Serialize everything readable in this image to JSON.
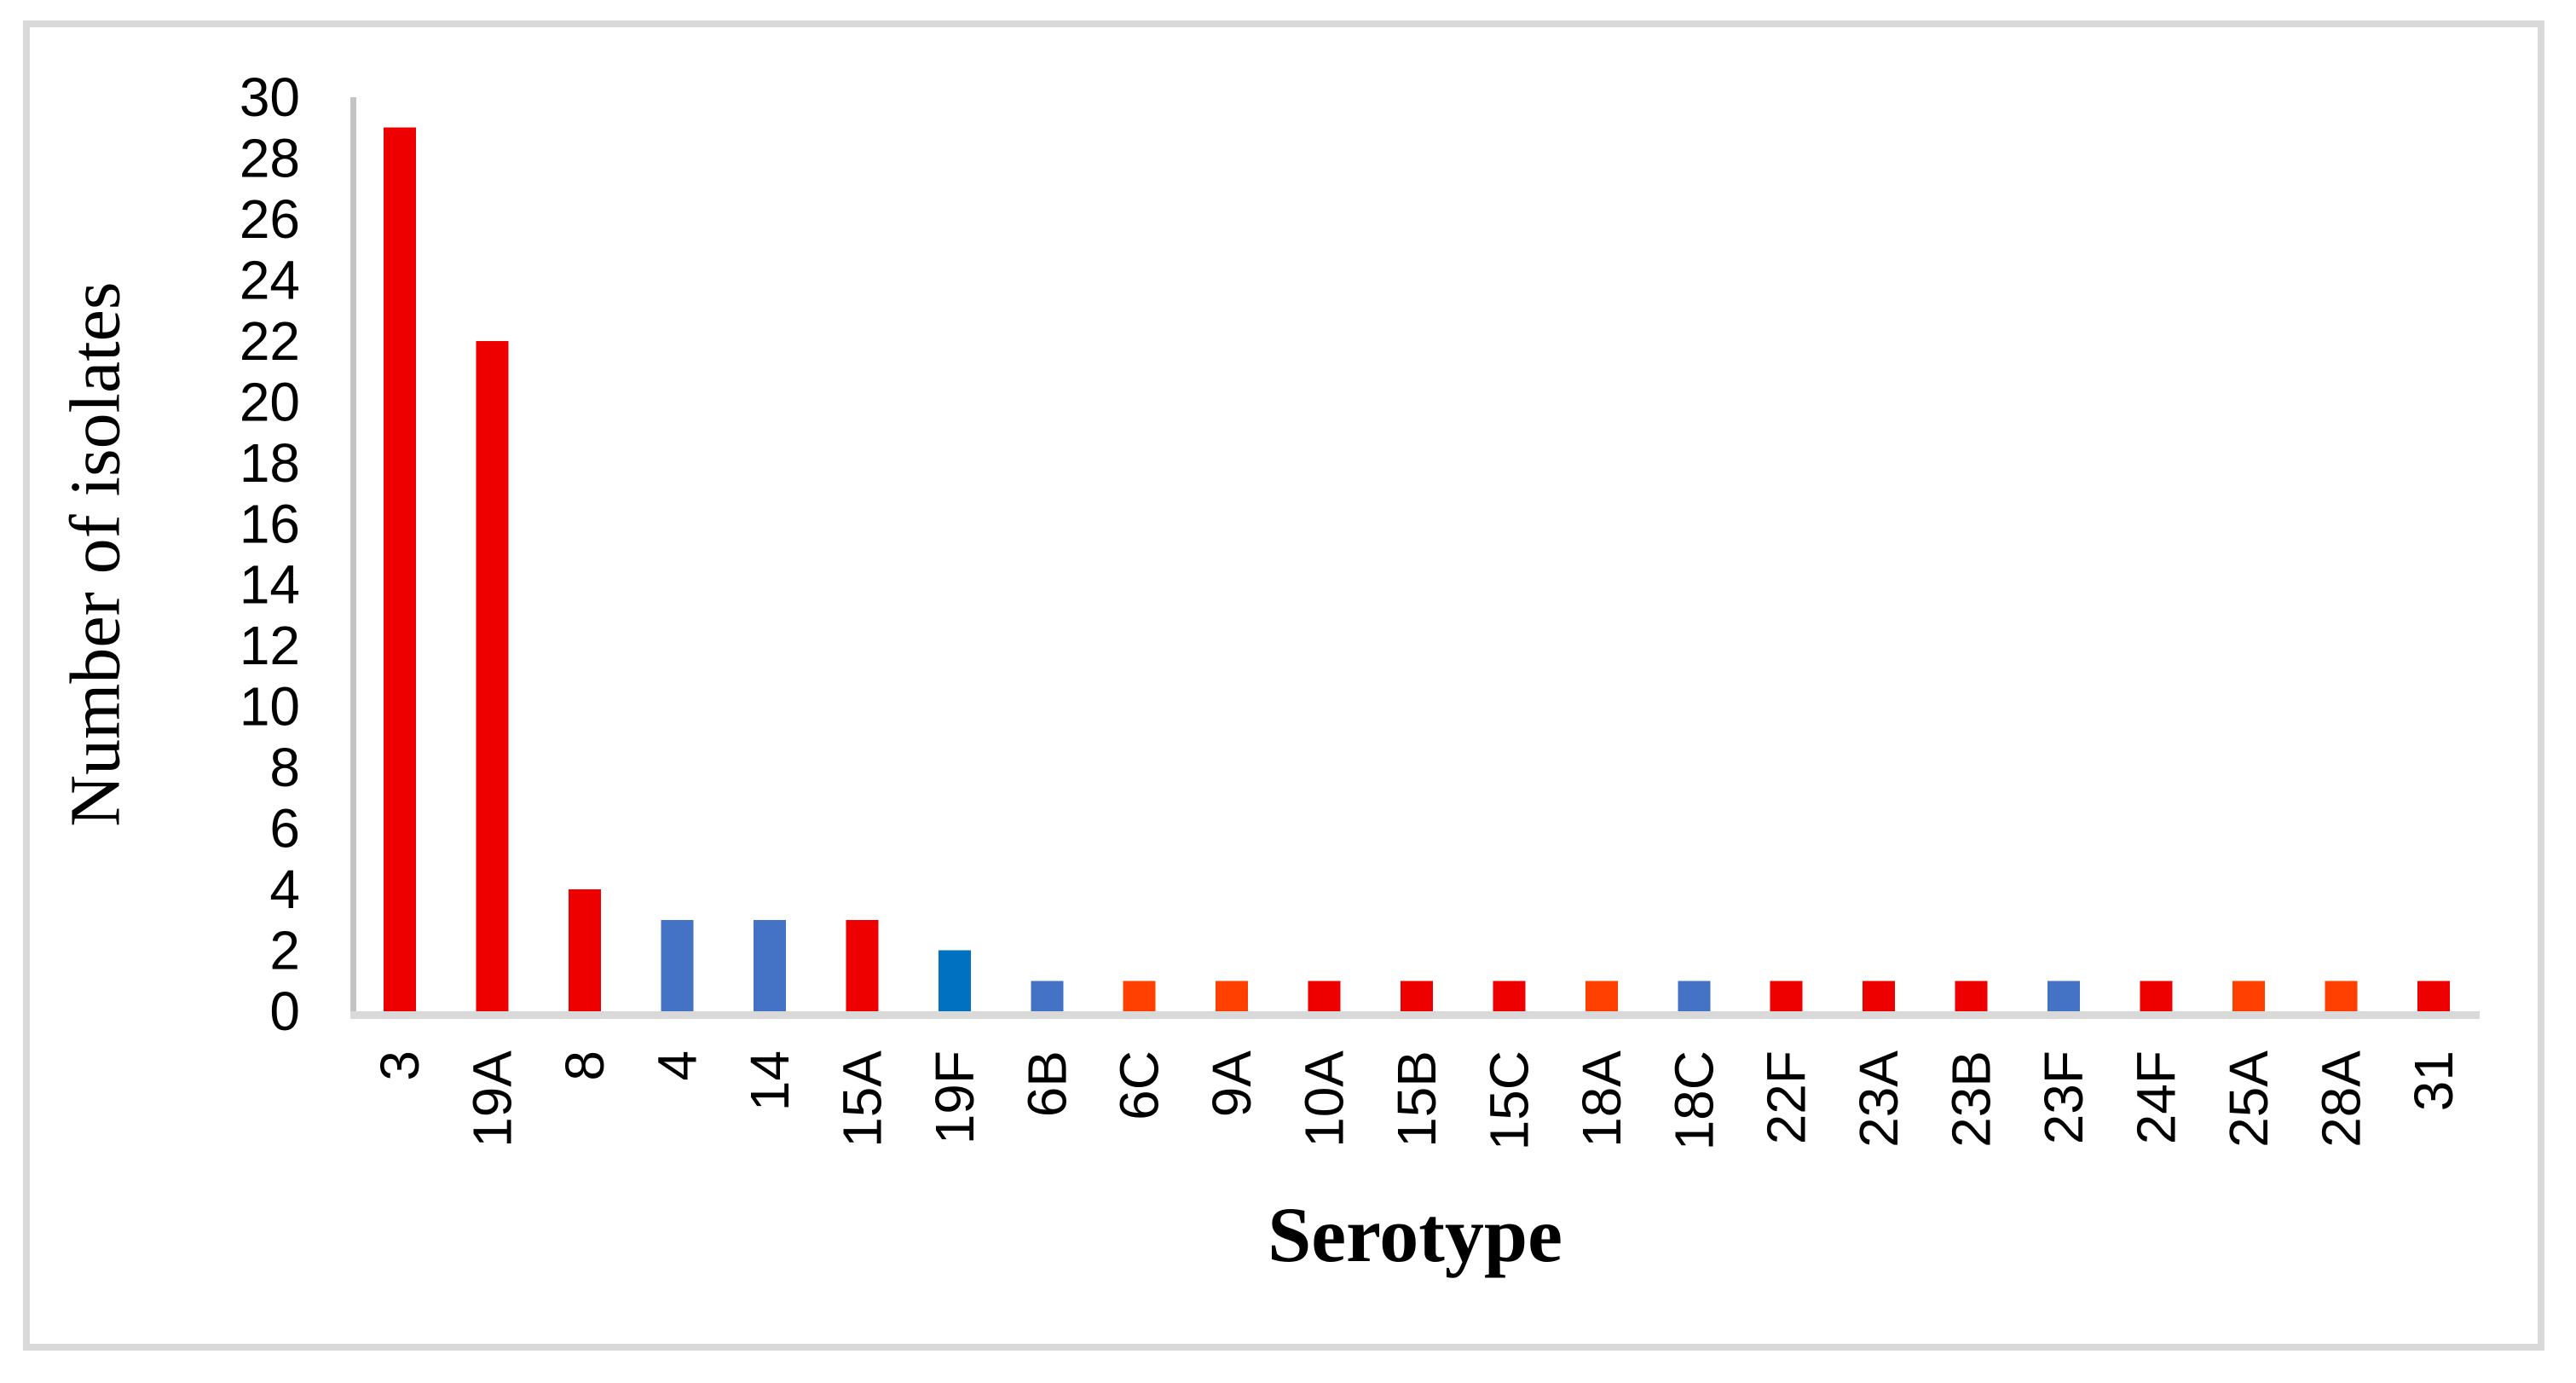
{
  "figure": {
    "background": "#FFFFFF",
    "border_color": "#D9D9D9"
  },
  "chart_data": {
    "type": "bar",
    "title": "",
    "xlabel": "Serotype",
    "ylabel": "Number of isolates",
    "categories": [
      "3",
      "19A",
      "8",
      "4",
      "14",
      "15A",
      "19F",
      "6B",
      "6C",
      "9A",
      "10A",
      "15B",
      "15C",
      "18A",
      "18C",
      "22F",
      "23A",
      "23B",
      "23F",
      "24F",
      "25A",
      "28A",
      "31"
    ],
    "values": [
      29,
      22,
      4,
      3,
      3,
      3,
      2,
      1,
      1,
      1,
      1,
      1,
      1,
      1,
      1,
      1,
      1,
      1,
      1,
      1,
      1,
      1,
      1
    ],
    "bar_color_keys": [
      "red",
      "red",
      "red",
      "blue",
      "blue",
      "red",
      "dark_blue",
      "blue",
      "orange",
      "orange",
      "red",
      "red",
      "red",
      "orange",
      "blue",
      "red",
      "red",
      "red",
      "blue",
      "red",
      "orange",
      "orange",
      "red"
    ],
    "colors": {
      "red": "#EE0000",
      "orange": "#FF4000",
      "blue": "#4472C4",
      "dark_blue": "#0070C0"
    },
    "ylim": [
      0,
      30
    ],
    "ytick_step": 2,
    "yticks": [
      0,
      2,
      4,
      6,
      8,
      10,
      12,
      14,
      16,
      18,
      20,
      22,
      24,
      26,
      28,
      30
    ],
    "y_axis_line_color": "#C4C4C4",
    "x_baseline_color": "#D9D9D9",
    "grid": "off",
    "legend_position": "none"
  }
}
